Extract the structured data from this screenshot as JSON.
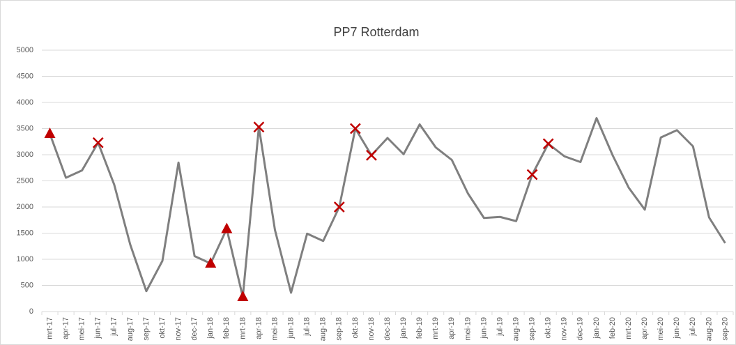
{
  "chart_data": {
    "type": "line",
    "title": "PP7 Rotterdam",
    "categories": [
      "mrt-17",
      "apr-17",
      "mei-17",
      "jun-17",
      "jul-17",
      "aug-17",
      "sep-17",
      "okt-17",
      "nov-17",
      "dec-17",
      "jan-18",
      "feb-18",
      "mrt-18",
      "apr-18",
      "mei-18",
      "jun-18",
      "jul-18",
      "aug-18",
      "sep-18",
      "okt-18",
      "nov-18",
      "dec-18",
      "jan-19",
      "feb-19",
      "mrt-19",
      "apr-19",
      "mei-19",
      "jun-19",
      "jul-19",
      "aug-19",
      "sep-19",
      "okt-19",
      "nov-19",
      "dec-19",
      "jan-20",
      "feb-20",
      "mrt-20",
      "apr-20",
      "mei-20",
      "jun-20",
      "jul-20",
      "aug-20",
      "sep-20"
    ],
    "series": [
      {
        "color": "#7f7f7f",
        "marker": "none",
        "values": [
          3400,
          2560,
          2700,
          3230,
          2430,
          1280,
          390,
          970,
          2850,
          1060,
          920,
          1580,
          280,
          3530,
          1560,
          360,
          1490,
          1350,
          2000,
          3500,
          2990,
          3320,
          3010,
          3580,
          3140,
          2900,
          2260,
          1790,
          1810,
          1730,
          2620,
          3210,
          2970,
          2860,
          3700,
          2990,
          2370,
          1950,
          3330,
          3470,
          3160,
          1800,
          1310
        ]
      },
      {
        "color": "#c00000",
        "marker": "triangle",
        "values": [
          3400,
          null,
          null,
          null,
          null,
          null,
          null,
          null,
          null,
          null,
          920,
          1580,
          280,
          null,
          null,
          null,
          null,
          null,
          null,
          null,
          null,
          null,
          null,
          null,
          null,
          null,
          null,
          null,
          null,
          null,
          null,
          null,
          null,
          null,
          null,
          null,
          null,
          null,
          null,
          null,
          null,
          null,
          null
        ]
      },
      {
        "color": "#c00000",
        "marker": "cross",
        "values": [
          null,
          null,
          null,
          3230,
          null,
          null,
          null,
          null,
          null,
          null,
          null,
          null,
          null,
          3530,
          null,
          null,
          null,
          null,
          2000,
          3500,
          2990,
          null,
          null,
          null,
          null,
          null,
          null,
          null,
          null,
          null,
          2620,
          3210,
          null,
          null,
          null,
          null,
          null,
          null,
          null,
          null,
          null,
          null,
          null
        ]
      }
    ],
    "ylim": [
      0,
      5000
    ],
    "yticks": [
      0,
      500,
      1000,
      1500,
      2000,
      2500,
      3000,
      3500,
      4000,
      4500,
      5000
    ],
    "grid": true
  }
}
